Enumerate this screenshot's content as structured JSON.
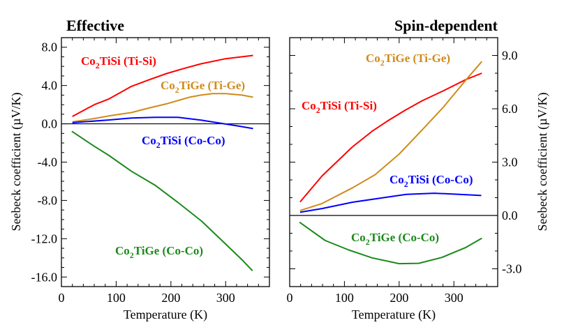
{
  "chart_data": [
    {
      "type": "line",
      "title": "Effective",
      "xlabel": "Temperature (K)",
      "ylabel": "Seebeck coefficient (µV/K)",
      "ylabel_side": "left",
      "xlim": [
        0,
        380
      ],
      "ylim": [
        -17,
        9
      ],
      "x_ticks": [
        0,
        100,
        200,
        300
      ],
      "x_tick_labels": [
        "0",
        "100",
        "200",
        "300"
      ],
      "x_minor_step": 20,
      "y_ticks": [
        8,
        4,
        0,
        -4,
        -8,
        -12,
        -16
      ],
      "y_tick_labels": [
        "8.0",
        "4.0",
        "0.0",
        "-4.0",
        "-8.0",
        "-12.0",
        "-16.0"
      ],
      "y_minor_step": 1,
      "zero_line": true,
      "grid": false,
      "series": [
        {
          "name": "Co2TiSi (Ti-Si)",
          "label_main": "Co",
          "label_sub": "2",
          "label_rest": "TiSi (Ti-Si)",
          "color": "#ff0000",
          "x": [
            20,
            60,
            86,
            128,
            160,
            192,
            225,
            255,
            300,
            350
          ],
          "y": [
            0.77,
            2.0,
            2.58,
            3.92,
            4.6,
            5.25,
            5.8,
            6.27,
            6.8,
            7.14
          ]
        },
        {
          "name": "Co2TiGe (Ti-Ge)",
          "label_main": "Co",
          "label_sub": "2",
          "label_rest": "TiGe (Ti-Ge)",
          "color": "#d08a1a",
          "x": [
            20,
            60,
            86,
            128,
            160,
            192,
            234,
            255,
            276,
            300,
            330,
            350
          ],
          "y": [
            0.2,
            0.55,
            0.82,
            1.18,
            1.65,
            2.09,
            2.78,
            3.0,
            3.15,
            3.16,
            3.0,
            2.78
          ]
        },
        {
          "name": "Co2TiSi (Co-Co)",
          "label_main": "Co",
          "label_sub": "2",
          "label_rest": "TiSi (Co-Co)",
          "color": "#0000ff",
          "x": [
            20,
            86,
            128,
            171,
            213,
            256,
            298,
            325,
            350
          ],
          "y": [
            0.12,
            0.4,
            0.6,
            0.68,
            0.68,
            0.38,
            0.0,
            -0.25,
            -0.5
          ]
        },
        {
          "name": "Co2TiGe (Co-Co)",
          "label_main": "Co",
          "label_sub": "2",
          "label_rest": "TiGe (Co-Co)",
          "color": "#1a8a1a",
          "x": [
            19,
            60,
            86,
            128,
            171,
            213,
            256,
            298,
            330,
            349
          ],
          "y": [
            -0.78,
            -2.35,
            -3.27,
            -4.96,
            -6.41,
            -8.22,
            -10.16,
            -12.45,
            -14.2,
            -15.35
          ]
        }
      ]
    },
    {
      "type": "line",
      "title": "Spin-dependent",
      "xlabel": "Temperature (K)",
      "ylabel": "Seebeck coefficient (µV/K)",
      "ylabel_side": "right",
      "xlim": [
        0,
        380
      ],
      "ylim": [
        -4,
        10
      ],
      "x_ticks": [
        0,
        100,
        200,
        300
      ],
      "x_tick_labels": [
        "0",
        "100",
        "200",
        "300"
      ],
      "x_minor_step": 20,
      "y_ticks": [
        9,
        6,
        3,
        0,
        -3
      ],
      "y_tick_labels": [
        "9.0",
        "6.0",
        "3.0",
        "0.0",
        "-3.0"
      ],
      "y_minor_step": 1,
      "zero_line": true,
      "grid": false,
      "series": [
        {
          "name": "Co2TiSi (Ti-Si)",
          "label_main": "Co",
          "label_sub": "2",
          "label_rest": "TiSi (Ti-Si)",
          "color": "#ff0000",
          "x": [
            19,
            59,
            114,
            152,
            178,
            210,
            242,
            280,
            323,
            351
          ],
          "y": [
            0.76,
            2.22,
            3.84,
            4.77,
            5.3,
            5.9,
            6.45,
            7.0,
            7.66,
            8.0
          ]
        },
        {
          "name": "Co2TiGe (Ti-Ge)",
          "label_main": "Co",
          "label_sub": "2",
          "label_rest": "TiGe (Ti-Ge)",
          "color": "#d08a1a",
          "x": [
            19,
            59,
            114,
            156,
            200,
            242,
            281,
            323,
            351
          ],
          "y": [
            0.28,
            0.67,
            1.54,
            2.29,
            3.45,
            4.81,
            6.1,
            7.66,
            8.66
          ]
        },
        {
          "name": "Co2TiSi (Co-Co)",
          "label_main": "Co",
          "label_sub": "2",
          "label_rest": "TiSi (Co-Co)",
          "color": "#0000ff",
          "x": [
            19,
            59,
            114,
            178,
            213,
            264,
            310,
            350
          ],
          "y": [
            0.18,
            0.39,
            0.74,
            1.03,
            1.19,
            1.25,
            1.19,
            1.12
          ]
        },
        {
          "name": "Co2TiGe (Co-Co)",
          "label_main": "Co",
          "label_sub": "2",
          "label_rest": "TiGe (Co-Co)",
          "color": "#1a8a1a",
          "x": [
            18,
            65,
            108,
            150,
            200,
            236,
            278,
            321,
            351
          ],
          "y": [
            -0.38,
            -1.41,
            -1.94,
            -2.38,
            -2.71,
            -2.69,
            -2.36,
            -1.81,
            -1.28
          ]
        }
      ]
    }
  ]
}
